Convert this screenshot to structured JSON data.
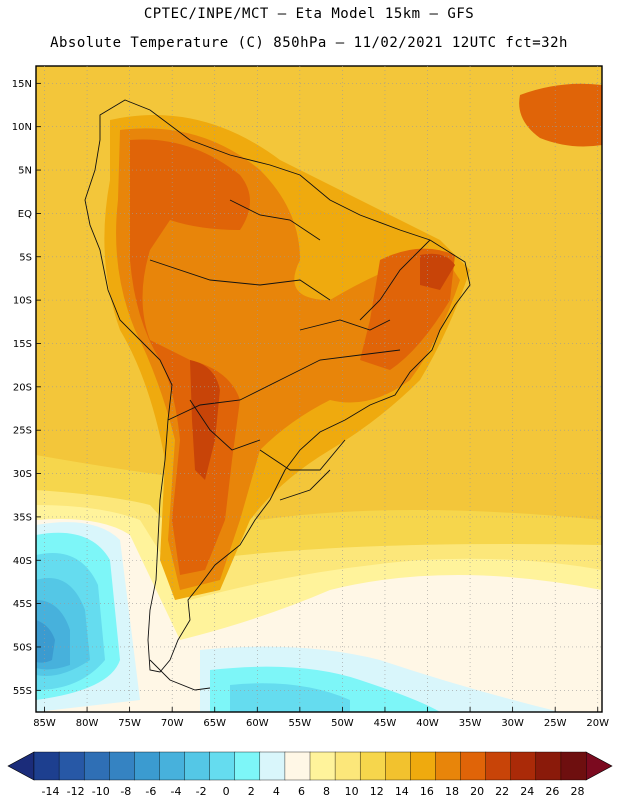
{
  "header": {
    "line1": "CPTEC/INPE/MCT –  Eta Model 15km – GFS",
    "line2": "Absolute Temperature (C) 850hPa – 11/02/2021 12UTC fct=32h"
  },
  "axes": {
    "lat_labels": [
      "15N",
      "10N",
      "5N",
      "EQ",
      "5S",
      "10S",
      "15S",
      "20S",
      "25S",
      "30S",
      "35S",
      "40S",
      "45S",
      "50S",
      "55S"
    ],
    "lon_labels": [
      "85W",
      "80W",
      "75W",
      "70W",
      "65W",
      "60W",
      "55W",
      "50W",
      "45W",
      "40W",
      "35W",
      "30W",
      "25W",
      "20W"
    ]
  },
  "colorbar": {
    "ticks": [
      "-14",
      "-12",
      "-10",
      "-8",
      "-6",
      "-4",
      "-2",
      "0",
      "2",
      "4",
      "6",
      "8",
      "10",
      "12",
      "14",
      "16",
      "18",
      "20",
      "22",
      "24",
      "26",
      "28"
    ],
    "colors": [
      "#1d3f8f",
      "#2758a6",
      "#2f6fb5",
      "#3583c2",
      "#3b9bd0",
      "#47b1dc",
      "#54c7e6",
      "#65dcef",
      "#7df6f8",
      "#d9f6fb",
      "#fff7e6",
      "#fff39b",
      "#fce77a",
      "#f6d64c",
      "#f2c22e",
      "#efaa0e",
      "#e8850a",
      "#e06408",
      "#c84408",
      "#aa2a08",
      "#8a1a0a",
      "#6e0f0f"
    ],
    "low_arrow_color": "#1b2c7a",
    "high_arrow_color": "#7b0a1f"
  },
  "fill_colors": {
    "background": "#f3c63a",
    "warm_18": "#efaa0e",
    "warm_20": "#e8850a",
    "warm_22": "#e06408",
    "warm_24": "#c84408",
    "cool_14": "#f6d64c",
    "cool_12": "#fce77a",
    "cool_10": "#fff39b",
    "cool_8": "#fff7e6",
    "cold_6": "#d9f6fb",
    "cold_4": "#7df6f8",
    "cold_2": "#65dcef",
    "cold_0": "#54c7e6",
    "cold_m2": "#47b1dc",
    "cold_m4": "#3b9bd0"
  }
}
